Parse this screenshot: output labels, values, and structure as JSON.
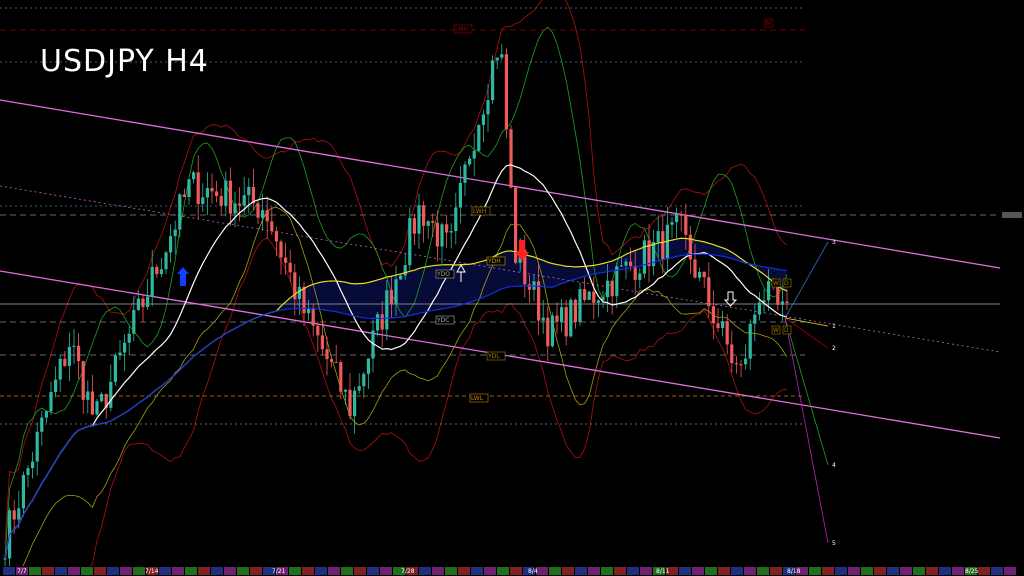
{
  "title": "USDJPY H4",
  "chart_data": {
    "type": "candlestick",
    "title": "USDJPY H4",
    "x_tick_labels": [
      "7/7",
      "7/14",
      "7/21",
      "7/28",
      "8/4",
      "8/11",
      "8/18",
      "8/25"
    ],
    "approx_close_path": [
      {
        "date": "7/7",
        "price": 144.0
      },
      {
        "date": "7/9",
        "price": 146.7
      },
      {
        "date": "7/10",
        "price": 145.6
      },
      {
        "date": "7/15",
        "price": 148.8
      },
      {
        "date": "7/18",
        "price": 148.5
      },
      {
        "date": "7/21",
        "price": 147.2
      },
      {
        "date": "7/24",
        "price": 145.8
      },
      {
        "date": "7/28",
        "price": 148.5
      },
      {
        "date": "7/29",
        "price": 147.9
      },
      {
        "date": "7/31",
        "price": 149.3
      },
      {
        "date": "8/1",
        "price": 150.8
      },
      {
        "date": "8/1",
        "price": 147.9
      },
      {
        "date": "8/5",
        "price": 146.8
      },
      {
        "date": "8/7",
        "price": 147.4
      },
      {
        "date": "8/12",
        "price": 148.2
      },
      {
        "date": "8/13",
        "price": 147.5
      },
      {
        "date": "8/14",
        "price": 146.2
      },
      {
        "date": "8/15",
        "price": 147.4
      },
      {
        "date": "8/18",
        "price": 147.0
      }
    ],
    "level_labels": [
      "LMH",
      "M",
      "LWH",
      "YDH",
      "YDO",
      "YDC",
      "YDL",
      "LWL",
      "W",
      "D",
      "W",
      "D"
    ],
    "projection_labels": [
      "3",
      "1",
      "2",
      "4",
      "5"
    ],
    "current_price_label": "",
    "grid": false,
    "colors": {
      "bull": "#2fb8a0",
      "bear": "#f05a5a",
      "ma_fast": "#ffffff",
      "ma_mid": "#e8e020",
      "ma_slow": "#1030e0",
      "channel": "#e070e0",
      "bands": "#b01010",
      "envelope": "#20a020",
      "background": "#000000"
    }
  }
}
